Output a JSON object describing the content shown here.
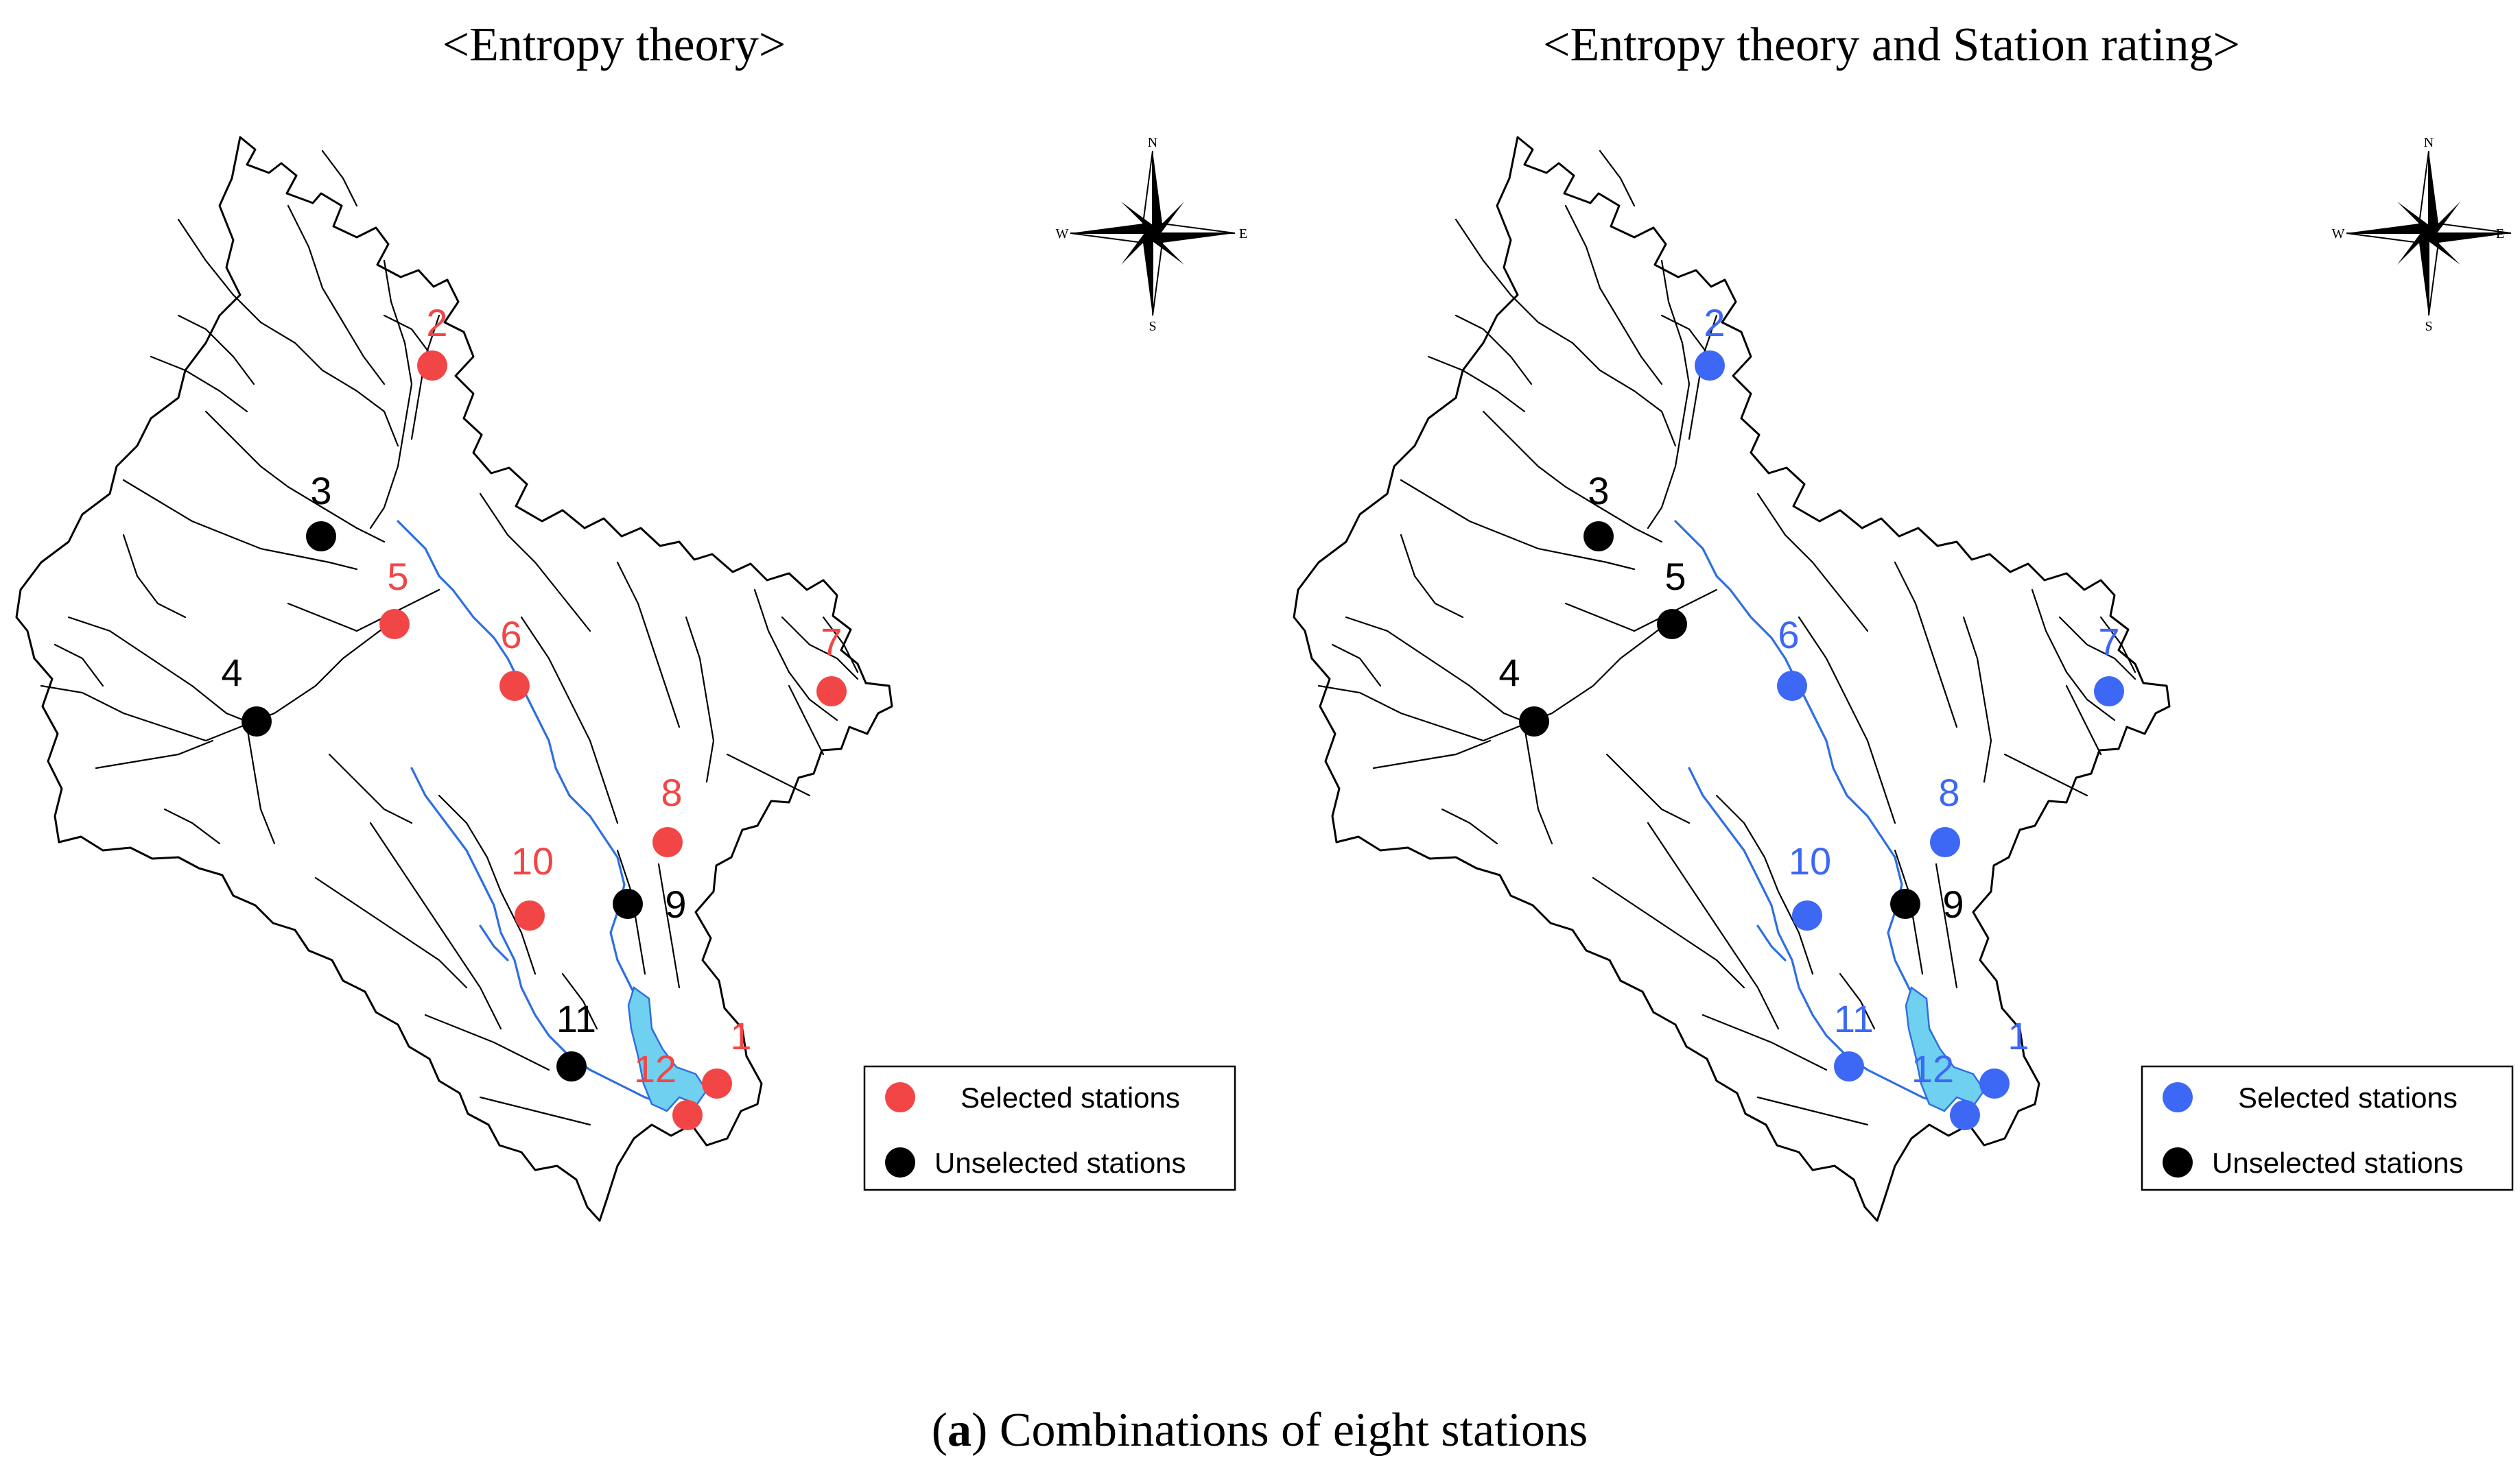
{
  "panels": [
    {
      "title": "<Entropy theory>",
      "selected_color": "#f24646",
      "unselected_color": "#000000",
      "stations": [
        {
          "id": "1",
          "selected": true
        },
        {
          "id": "2",
          "selected": true
        },
        {
          "id": "3",
          "selected": false
        },
        {
          "id": "4",
          "selected": false
        },
        {
          "id": "5",
          "selected": true
        },
        {
          "id": "6",
          "selected": true
        },
        {
          "id": "7",
          "selected": true
        },
        {
          "id": "8",
          "selected": true
        },
        {
          "id": "9",
          "selected": false
        },
        {
          "id": "10",
          "selected": true
        },
        {
          "id": "11",
          "selected": false
        },
        {
          "id": "12",
          "selected": true
        }
      ],
      "legend": {
        "selected_label": "Selected stations",
        "unselected_label": "Unselected stations"
      },
      "compass": {
        "n": "N",
        "e": "E",
        "s": "S",
        "w": "W"
      }
    },
    {
      "title": "<Entropy theory and Station rating>",
      "selected_color": "#3d67f5",
      "unselected_color": "#000000",
      "stations": [
        {
          "id": "1",
          "selected": true
        },
        {
          "id": "2",
          "selected": true
        },
        {
          "id": "3",
          "selected": false
        },
        {
          "id": "4",
          "selected": false
        },
        {
          "id": "5",
          "selected": false
        },
        {
          "id": "6",
          "selected": true
        },
        {
          "id": "7",
          "selected": true
        },
        {
          "id": "8",
          "selected": true
        },
        {
          "id": "9",
          "selected": false
        },
        {
          "id": "10",
          "selected": true
        },
        {
          "id": "11",
          "selected": true
        },
        {
          "id": "12",
          "selected": true
        }
      ],
      "legend": {
        "selected_label": "Selected stations",
        "unselected_label": "Unselected stations"
      },
      "compass": {
        "n": "N",
        "e": "E",
        "s": "S",
        "w": "W"
      }
    }
  ],
  "caption": {
    "letter": "a",
    "text": " Combinations of eight stations"
  }
}
